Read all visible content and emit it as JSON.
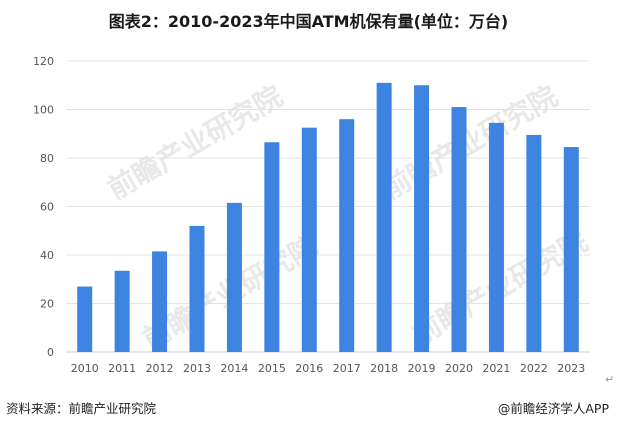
{
  "title": "图表2：2010-2023年中国ATM机保有量(单位：万台)",
  "footer": {
    "source": "资料来源：前瞻产业研究院",
    "brand": "@前瞻经济学人APP"
  },
  "watermark": {
    "text": "前瞻产业研究院"
  },
  "chart_data": {
    "type": "bar",
    "categories": [
      "2010",
      "2011",
      "2012",
      "2013",
      "2014",
      "2015",
      "2016",
      "2017",
      "2018",
      "2019",
      "2020",
      "2021",
      "2022",
      "2023"
    ],
    "values": [
      27,
      33.5,
      41.5,
      52,
      61.5,
      86.5,
      92.5,
      96,
      111,
      110,
      101,
      94.5,
      89.5,
      84.5
    ],
    "ylim": [
      0,
      120
    ],
    "yticks": [
      0,
      20,
      40,
      60,
      80,
      100,
      120
    ],
    "grid": true,
    "bar_color": "#3d84e0",
    "grid_color": "#e3e3e3"
  }
}
